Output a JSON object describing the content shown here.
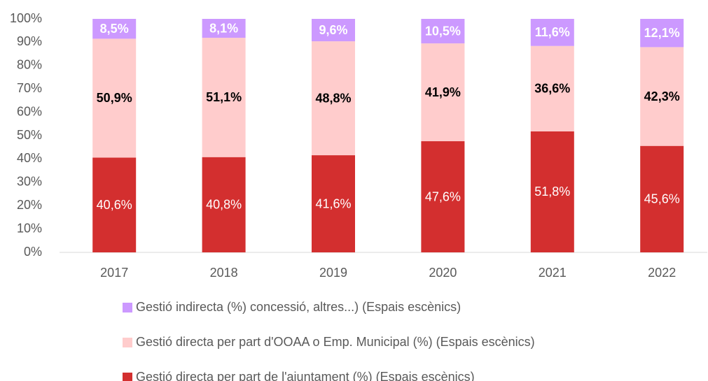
{
  "chart_data": {
    "type": "stacked_bar",
    "categories": [
      "2017",
      "2018",
      "2019",
      "2020",
      "2021",
      "2022"
    ],
    "series": [
      {
        "name": "Gestió directa per part de l'ajuntament (%) (Espais escènics)",
        "color": "#d32f2f",
        "values": [
          40.6,
          40.8,
          41.6,
          47.6,
          51.8,
          45.6
        ],
        "value_labels": [
          "40,6%",
          "40,8%",
          "41,6%",
          "47,6%",
          "51,8%",
          "45,6%"
        ]
      },
      {
        "name": "Gestió directa per part d'OOAA o Emp. Municipal (%) (Espais escènics)",
        "color": "#ffcccc",
        "values": [
          50.9,
          51.1,
          48.8,
          41.9,
          36.6,
          42.3
        ],
        "value_labels": [
          "50,9%",
          "51,1%",
          "48,8%",
          "41,9%",
          "36,6%",
          "42,3%"
        ]
      },
      {
        "name": "Gestió indirecta (%) concessió, altres...) (Espais escènics)",
        "color": "#cc99ff",
        "values": [
          8.5,
          8.1,
          9.6,
          10.5,
          11.6,
          12.1
        ],
        "value_labels": [
          "8,5%",
          "8,1%",
          "9,6%",
          "10,5%",
          "11,6%",
          "12,1%"
        ]
      }
    ],
    "ylim": [
      0,
      100
    ],
    "yticks": [
      {
        "value": 0,
        "label": "0%"
      },
      {
        "value": 10,
        "label": "10%"
      },
      {
        "value": 20,
        "label": "20%"
      },
      {
        "value": 30,
        "label": "30%"
      },
      {
        "value": 40,
        "label": "40%"
      },
      {
        "value": 50,
        "label": "50%"
      },
      {
        "value": 60,
        "label": "60%"
      },
      {
        "value": 70,
        "label": "70%"
      },
      {
        "value": 80,
        "label": "80%"
      },
      {
        "value": 90,
        "label": "90%"
      },
      {
        "value": 100,
        "label": "100%"
      }
    ]
  }
}
